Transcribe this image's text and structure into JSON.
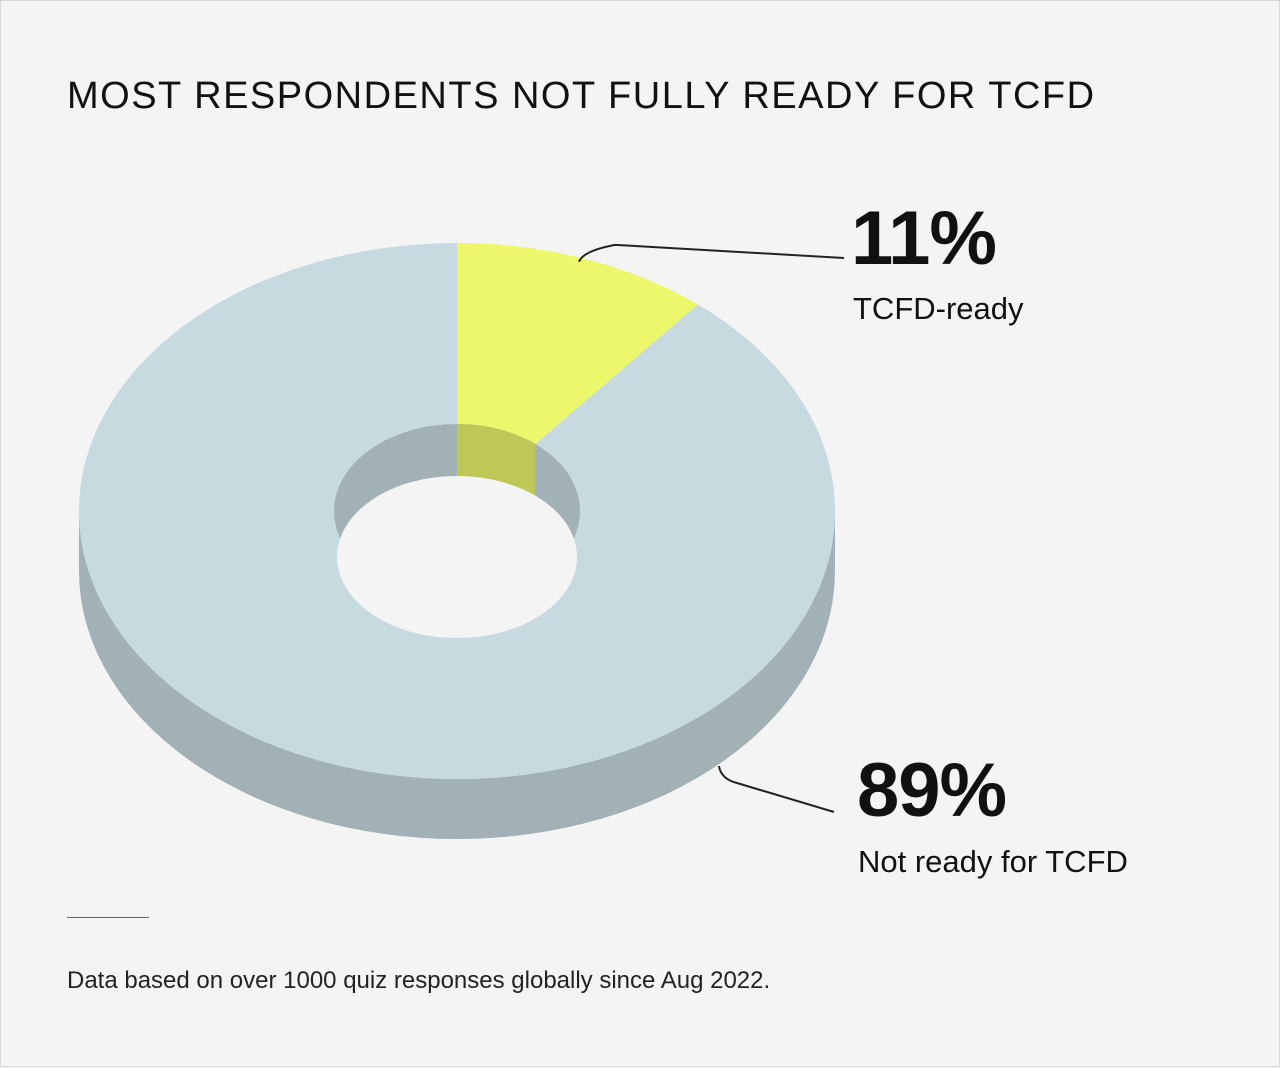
{
  "chart_data": {
    "type": "pie",
    "title": "MOST RESPONDENTS NOT FULLY READY FOR TCFD",
    "slices": [
      {
        "label": "TCFD-ready",
        "value": 11,
        "value_label": "11%",
        "color": "#ecf76b"
      },
      {
        "label": "Not ready for TCFD",
        "value": 89,
        "value_label": "89%",
        "color": "#c7dae0"
      }
    ],
    "style": "3d-donut"
  },
  "footnote": "Data based on over 1000 quiz responses globally since Aug 2022."
}
